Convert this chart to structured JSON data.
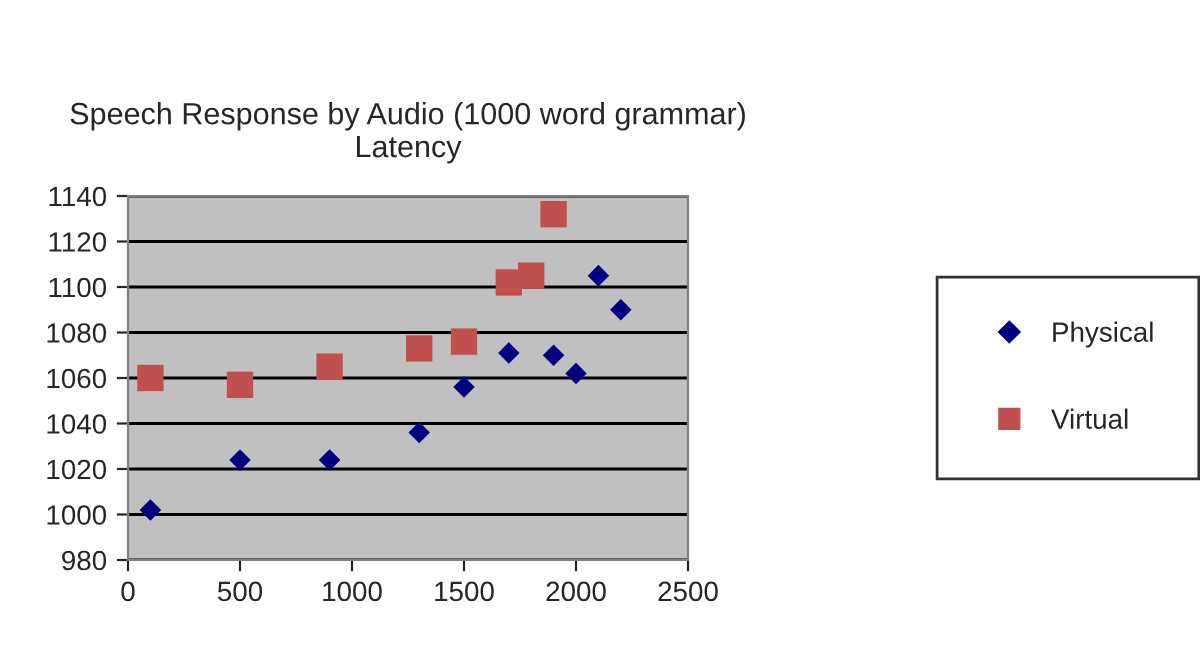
{
  "chart_data": {
    "type": "scatter",
    "title": "Speech Response by Audio (1000 word grammar)\nLatency",
    "series": [
      {
        "name": "Physical",
        "color": "#000080",
        "marker": "diamond",
        "x": [
          100,
          500,
          900,
          1300,
          1500,
          1700,
          1900,
          2000,
          2100,
          2200
        ],
        "values": [
          1002,
          1024,
          1024,
          1036,
          1056,
          1071,
          1070,
          1062,
          1105,
          1090
        ]
      },
      {
        "name": "Virtual",
        "color": "#c0504d",
        "marker": "square",
        "x": [
          100,
          500,
          900,
          1300,
          1500,
          1700,
          1800,
          1900
        ],
        "values": [
          1060,
          1057,
          1065,
          1073,
          1076,
          1102,
          1105,
          1132
        ]
      }
    ],
    "xlim": [
      0,
      2500
    ],
    "xticks": [
      0,
      500,
      1000,
      1500,
      2000,
      2500
    ],
    "ylim": [
      980,
      1140
    ],
    "yticks": [
      980,
      1000,
      1020,
      1040,
      1060,
      1080,
      1100,
      1120,
      1140
    ],
    "grid": "y",
    "legend": "right"
  }
}
